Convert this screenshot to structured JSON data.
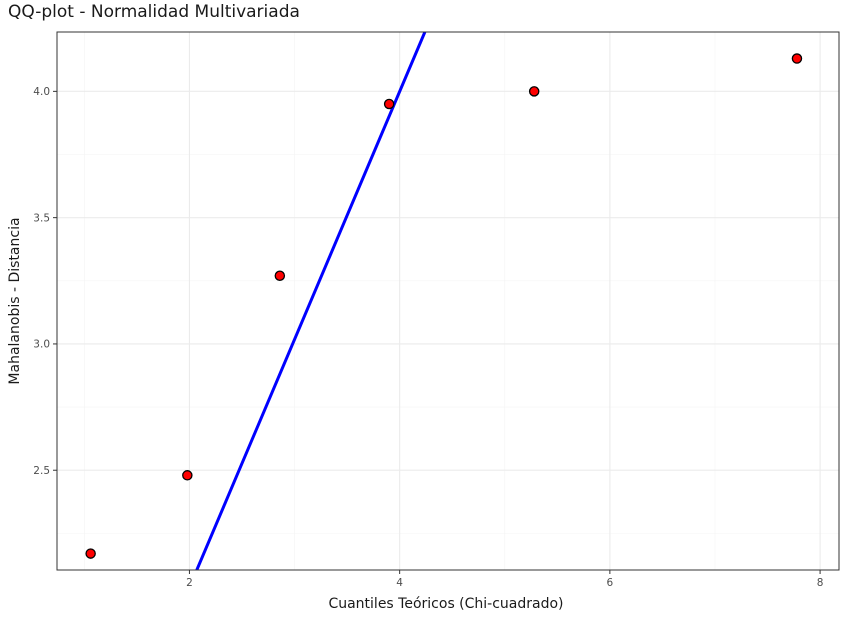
{
  "chart_data": {
    "type": "scatter",
    "title": "QQ-plot - Normalidad Multivariada",
    "xlabel": "Cuantiles Teóricos (Chi-cuadrado)",
    "ylabel": "Mahalanobis - Distancia",
    "xlim": [
      0.74,
      8.18
    ],
    "ylim": [
      2.105,
      4.235
    ],
    "x_ticks": [
      2,
      4,
      6,
      8
    ],
    "x_tick_labels": [
      "2",
      "4",
      "6",
      "8"
    ],
    "y_ticks": [
      2.5,
      3.0,
      3.5,
      4.0
    ],
    "y_tick_labels": [
      "2.5",
      "3.0",
      "3.5",
      "4.0"
    ],
    "x_minor": [
      1,
      3,
      5,
      7
    ],
    "y_minor": [
      2.25,
      2.75,
      3.25,
      3.75
    ],
    "grid": true,
    "points": {
      "x": [
        1.06,
        1.98,
        2.86,
        3.9,
        5.28,
        7.78
      ],
      "y": [
        2.17,
        2.48,
        3.27,
        3.95,
        4.0,
        4.13
      ],
      "color": "#ff0000",
      "edge_color": "#000000"
    },
    "reference_line": {
      "x": [
        2.07,
        4.24
      ],
      "y": [
        2.105,
        4.235
      ],
      "color": "#0000ff"
    }
  }
}
